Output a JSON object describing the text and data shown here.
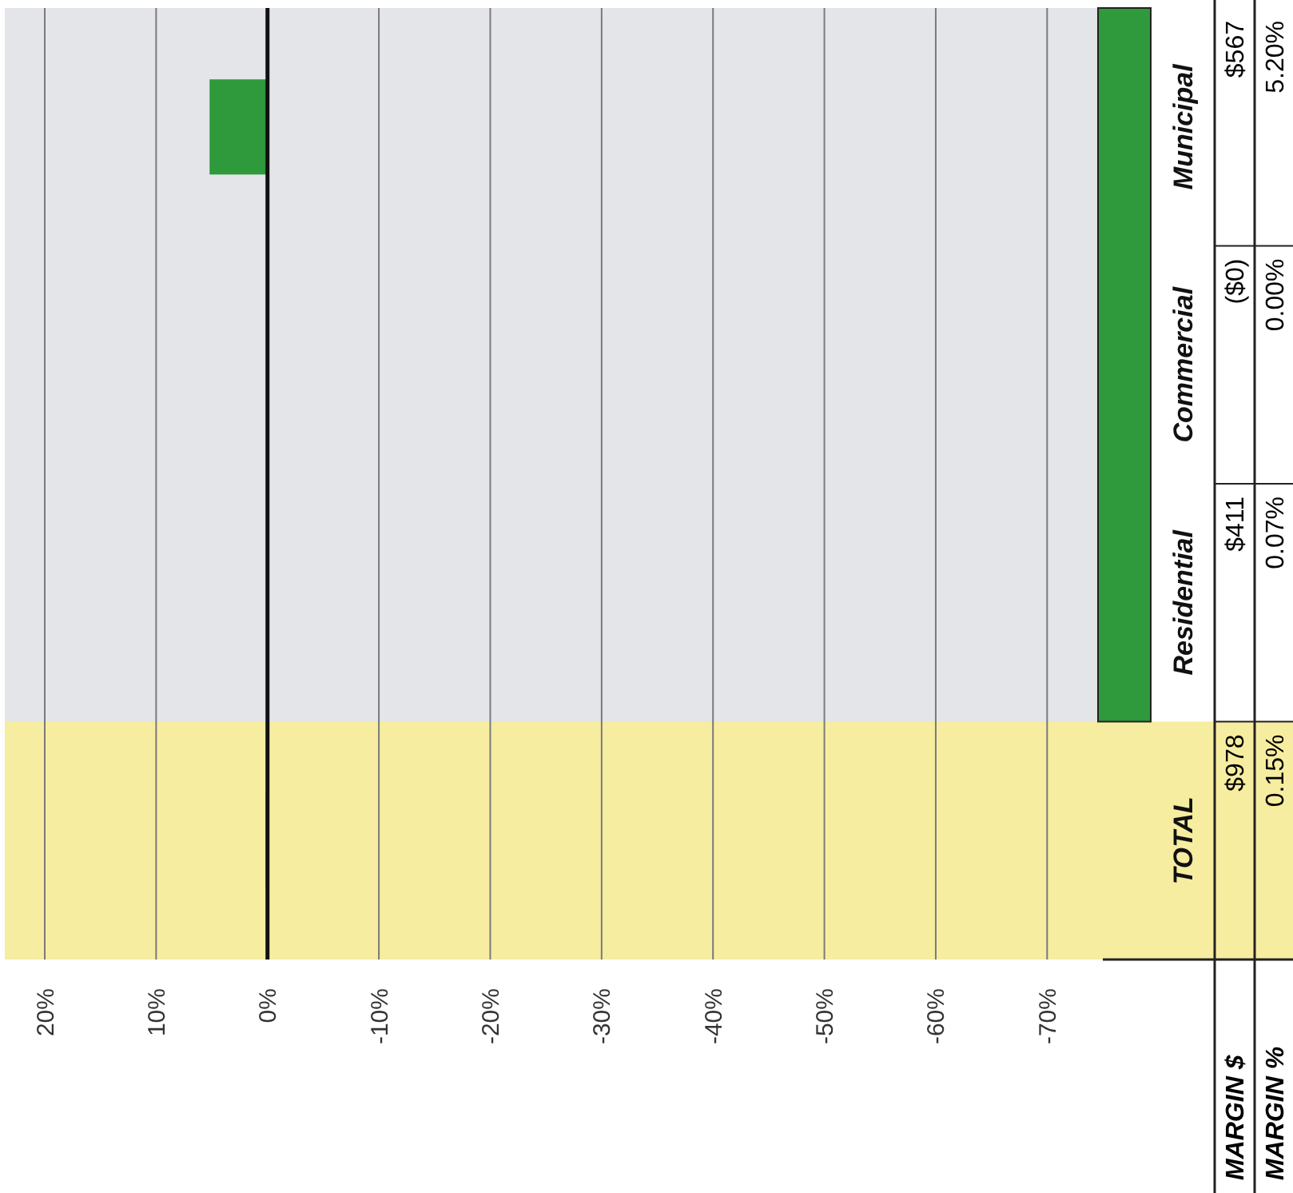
{
  "chart_data": {
    "type": "bar",
    "orientation": "horizontal",
    "categories": [
      "Municipal",
      "Commercial",
      "Residential",
      "TOTAL"
    ],
    "values": [
      5.2,
      0.0,
      0.07,
      0.15
    ],
    "color": "#2e9a3c",
    "value_labels": [
      "5.20%",
      "0.00%",
      "0.07%",
      "0.15%"
    ],
    "annotations": [
      "MARGIN $",
      "$567",
      "($0)",
      "$411",
      "$978",
      "MARGIN %"
    ],
    "xlim": [
      20,
      -75
    ],
    "xticks": [
      {
        "value": 20,
        "label": "20%"
      },
      {
        "value": 10,
        "label": "10%"
      },
      {
        "value": 0,
        "label": "0%"
      },
      {
        "value": -10,
        "label": "-10%"
      },
      {
        "value": -20,
        "label": "-20%"
      },
      {
        "value": -30,
        "label": "-30%"
      },
      {
        "value": -40,
        "label": "-40%"
      },
      {
        "value": -50,
        "label": "-50%"
      },
      {
        "value": -60,
        "label": "-60%"
      },
      {
        "value": -70,
        "label": "-70%"
      }
    ],
    "bands": [
      {
        "axis": "y",
        "from": "TOTAL",
        "to": "TOTAL",
        "color": "#f6eda0"
      }
    ],
    "grid": "x"
  }
}
